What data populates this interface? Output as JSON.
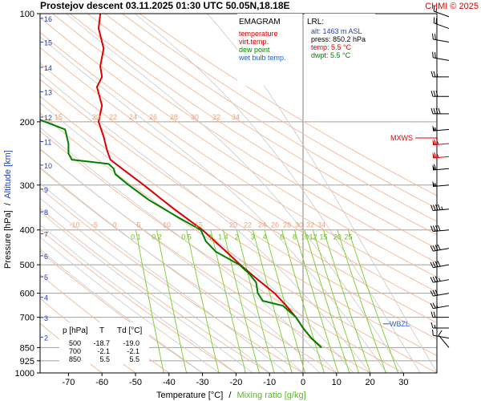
{
  "header": {
    "title": "Prostejov   descent   03.11.2025 01:30 UTC   50.05N,18.18E",
    "copyright": "CHMI © 2025"
  },
  "colors": {
    "temperature": "#e00000",
    "virt_temp": "#e00000",
    "dew_point": "#008000",
    "wet_bulb": "#1f5fd8",
    "dry_adiabat": "#f3b896",
    "moist_adiabat": "#c8c8c8",
    "mixing_ratio": "#86cf3a",
    "isobar": "#a0a0a0",
    "legend_label": "#3060c0"
  },
  "legend": {
    "title": "EMAGRAM",
    "items": [
      {
        "label": "temperature",
        "color": "#e00000"
      },
      {
        "label": "virt.temp.",
        "color": "#e00000"
      },
      {
        "label": "dew point",
        "color": "#008000"
      },
      {
        "label": "wet bulb temp.",
        "color": "#1f5fd8"
      }
    ]
  },
  "lrl": {
    "title": "LRL:",
    "alt": "alt: 1463 m ASL",
    "press": "press: 850.2 hPa",
    "temp": "temp: 5.5 °C",
    "dwpt": "dwpt: 5.5 °C"
  },
  "table": {
    "headers": [
      "p [hPa]",
      "T",
      "Td [°C]"
    ],
    "rows": [
      [
        "500",
        "-18.7",
        "-19.0"
      ],
      [
        "700",
        "-2.1",
        "-2.1"
      ],
      [
        "850",
        "5.5",
        "5.5"
      ]
    ]
  },
  "markers": {
    "mxws": "MXWS",
    "wbzl": "WBZL"
  },
  "chart_data": {
    "type": "line",
    "xlabel": "Temperature [°C]",
    "xlabel_sep": "/",
    "xlabel2": "Mixing ratio [g/kg]",
    "ylabel": "Pressure [hPa]",
    "ylabel_sep": "/",
    "ylabel2": "Altitude [km]",
    "xlim": [
      -80,
      35
    ],
    "ylim": [
      1000,
      100
    ],
    "yscale": "log",
    "x_ticks": [
      -70,
      -60,
      -50,
      -40,
      -30,
      -20,
      -10,
      0,
      10,
      20,
      30
    ],
    "p_ticks": [
      100,
      200,
      300,
      400,
      500,
      600,
      700,
      850,
      925,
      1000
    ],
    "alt_ticks": [
      {
        "km": "16",
        "p": 103
      },
      {
        "km": "15",
        "p": 120
      },
      {
        "km": "14",
        "p": 141
      },
      {
        "km": "13",
        "p": 165
      },
      {
        "km": "12",
        "p": 194
      },
      {
        "km": "11",
        "p": 227
      },
      {
        "km": "10",
        "p": 264
      },
      {
        "km": "9",
        "p": 308
      },
      {
        "km": "8",
        "p": 356
      },
      {
        "km": "7",
        "p": 410
      },
      {
        "km": "6",
        "p": 472
      },
      {
        "km": "5",
        "p": 540
      },
      {
        "km": "4",
        "p": 616
      },
      {
        "km": "3",
        "p": 701
      },
      {
        "km": "2",
        "p": 795
      }
    ],
    "series": [
      {
        "name": "temperature",
        "p": [
          850,
          800,
          750,
          700,
          650,
          600,
          550,
          500,
          450,
          400,
          350,
          300,
          270,
          255,
          240,
          220,
          200,
          180,
          160,
          150,
          140,
          125,
          110,
          100
        ],
        "t": [
          5.5,
          2.5,
          0,
          -2.1,
          -5,
          -8.5,
          -13.5,
          -18.7,
          -24,
          -30,
          -38.5,
          -47.5,
          -54,
          -57.5,
          -58.5,
          -59.5,
          -61,
          -60,
          -61.5,
          -60,
          -60.5,
          -59.5,
          -61,
          -60.5
        ]
      },
      {
        "name": "dew point",
        "p": [
          850,
          800,
          750,
          700,
          650,
          630,
          600,
          560,
          530,
          500,
          460,
          430,
          400,
          370,
          330,
          300,
          280,
          270,
          262,
          255,
          245,
          230,
          210,
          195
        ],
        "td": [
          5.5,
          2.5,
          0,
          -2.1,
          -6,
          -12,
          -13.5,
          -14,
          -16,
          -19,
          -26,
          -29,
          -30.5,
          -37,
          -46,
          -52,
          -56,
          -56.5,
          -58,
          -69,
          -70,
          -70,
          -71,
          -80
        ]
      }
    ],
    "mixing_ratio_labels": [
      "0.1",
      "0.2",
      "0.5",
      "1",
      "1.4",
      "2",
      "3",
      "4",
      "6",
      "8",
      "10",
      "12",
      "15",
      "20",
      "25"
    ],
    "mixing_ratio_values": [
      0.1,
      0.2,
      0.5,
      1,
      1.4,
      2,
      3,
      4,
      6,
      8,
      10,
      12,
      15,
      20,
      25
    ],
    "adiabat_labels_200": [
      "15",
      "20",
      "22",
      "24",
      "26",
      "28",
      "30",
      "32",
      "34"
    ],
    "adiabat_labels_400": [
      "-10",
      "-5",
      "0",
      "5",
      "10",
      "15",
      "20",
      "22",
      "24",
      "26",
      "28",
      "30",
      "32",
      "34"
    ],
    "wind_barbs": [
      {
        "p": 850,
        "dir": 320,
        "spd": 10
      },
      {
        "p": 800,
        "dir": 280,
        "spd": 10
      },
      {
        "p": 750,
        "dir": 270,
        "spd": 15
      },
      {
        "p": 700,
        "dir": 270,
        "spd": 20
      },
      {
        "p": 650,
        "dir": 260,
        "spd": 25
      },
      {
        "p": 600,
        "dir": 260,
        "spd": 30
      },
      {
        "p": 550,
        "dir": 260,
        "spd": 35
      },
      {
        "p": 500,
        "dir": 260,
        "spd": 40
      },
      {
        "p": 450,
        "dir": 260,
        "spd": 40
      },
      {
        "p": 400,
        "dir": 265,
        "spd": 40
      },
      {
        "p": 350,
        "dir": 265,
        "spd": 45
      },
      {
        "p": 300,
        "dir": 265,
        "spd": 55
      },
      {
        "p": 270,
        "dir": 265,
        "spd": 60
      },
      {
        "p": 250,
        "dir": 265,
        "spd": 65
      },
      {
        "p": 230,
        "dir": 265,
        "spd": 70
      },
      {
        "p": 210,
        "dir": 265,
        "spd": 55
      },
      {
        "p": 190,
        "dir": 270,
        "spd": 40
      },
      {
        "p": 170,
        "dir": 270,
        "spd": 30
      },
      {
        "p": 150,
        "dir": 270,
        "spd": 25
      },
      {
        "p": 135,
        "dir": 280,
        "spd": 20
      },
      {
        "p": 120,
        "dir": 280,
        "spd": 20
      },
      {
        "p": 110,
        "dir": 290,
        "spd": 20
      },
      {
        "p": 102,
        "dir": 290,
        "spd": 15
      }
    ],
    "mxws_p": 230,
    "wbzl_p": 730
  }
}
